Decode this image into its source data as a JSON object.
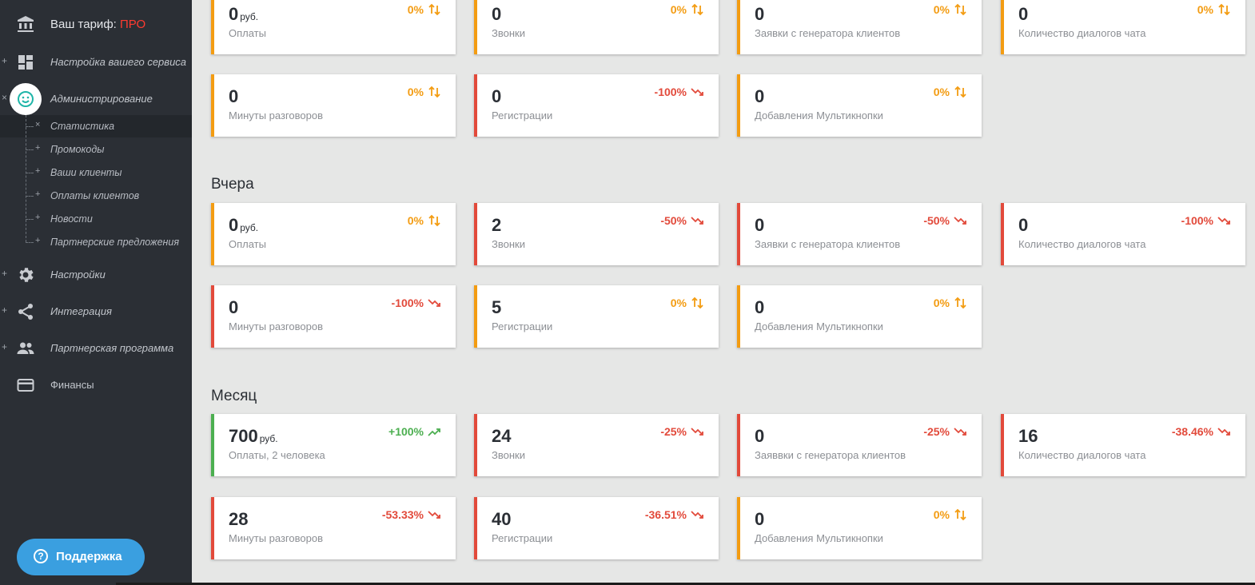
{
  "sidebar": {
    "tariff_label": "Ваш тариф:",
    "tariff_value": "ПРО",
    "items": [
      {
        "label": "Настройка вашего сервиса",
        "pm": "+",
        "icon": "dashboard-icon"
      },
      {
        "label": "Администрирование",
        "pm": "×",
        "icon": "smile-icon"
      },
      {
        "label": "Настройки",
        "pm": "+",
        "icon": "gear-icon"
      },
      {
        "label": "Интеграция",
        "pm": "+",
        "icon": "share-icon"
      },
      {
        "label": "Партнерская программа",
        "pm": "+",
        "icon": "people-icon"
      },
      {
        "label": "Финансы",
        "pm": "",
        "icon": "card-icon"
      }
    ],
    "subitems": [
      {
        "label": "Статистика",
        "mark": "×"
      },
      {
        "label": "Промокоды",
        "mark": "+"
      },
      {
        "label": "Ваши клиенты",
        "mark": "+"
      },
      {
        "label": "Оплаты клиентов",
        "mark": "+"
      },
      {
        "label": "Новости",
        "mark": "+"
      },
      {
        "label": "Партнерские предложения",
        "mark": "+"
      }
    ],
    "support_label": "Поддержка",
    "support_icon": "?"
  },
  "sections": [
    {
      "title": "",
      "cards": [
        {
          "value": "0",
          "unit": "руб.",
          "label": "Оплаты",
          "pct": "0%",
          "trend": "flat",
          "color": "orange"
        },
        {
          "value": "0",
          "unit": "",
          "label": "Звонки",
          "pct": "0%",
          "trend": "flat",
          "color": "orange"
        },
        {
          "value": "0",
          "unit": "",
          "label": "Заявки с генератора клиентов",
          "pct": "0%",
          "trend": "flat",
          "color": "orange"
        },
        {
          "value": "0",
          "unit": "",
          "label": "Количество диалогов чата",
          "pct": "0%",
          "trend": "flat",
          "color": "orange"
        },
        {
          "value": "0",
          "unit": "",
          "label": "Минуты разговоров",
          "pct": "0%",
          "trend": "flat",
          "color": "orange"
        },
        {
          "value": "0",
          "unit": "",
          "label": "Регистрации",
          "pct": "-100%",
          "trend": "down",
          "color": "red"
        },
        {
          "value": "0",
          "unit": "",
          "label": "Добавления Мультикнопки",
          "pct": "0%",
          "trend": "flat",
          "color": "orange"
        }
      ]
    },
    {
      "title": "Вчера",
      "cards": [
        {
          "value": "0",
          "unit": "руб.",
          "label": "Оплаты",
          "pct": "0%",
          "trend": "flat",
          "color": "orange"
        },
        {
          "value": "2",
          "unit": "",
          "label": "Звонки",
          "pct": "-50%",
          "trend": "down",
          "color": "red"
        },
        {
          "value": "0",
          "unit": "",
          "label": "Заявки с генератора клиентов",
          "pct": "-50%",
          "trend": "down",
          "color": "red"
        },
        {
          "value": "0",
          "unit": "",
          "label": "Количество диалогов чата",
          "pct": "-100%",
          "trend": "down",
          "color": "red"
        },
        {
          "value": "0",
          "unit": "",
          "label": "Минуты разговоров",
          "pct": "-100%",
          "trend": "down",
          "color": "red"
        },
        {
          "value": "5",
          "unit": "",
          "label": "Регистрации",
          "pct": "0%",
          "trend": "flat",
          "color": "orange"
        },
        {
          "value": "0",
          "unit": "",
          "label": "Добавления Мультикнопки",
          "pct": "0%",
          "trend": "flat",
          "color": "orange"
        }
      ]
    },
    {
      "title": "Месяц",
      "cards": [
        {
          "value": "700",
          "unit": "руб.",
          "label": "Оплаты, 2 человека",
          "pct": "+100%",
          "trend": "up",
          "color": "green"
        },
        {
          "value": "24",
          "unit": "",
          "label": "Звонки",
          "pct": "-25%",
          "trend": "down",
          "color": "red"
        },
        {
          "value": "0",
          "unit": "",
          "label": "Заяввки с генератора клиентов",
          "pct": "-25%",
          "trend": "down",
          "color": "red"
        },
        {
          "value": "16",
          "unit": "",
          "label": "Количество диалогов чата",
          "pct": "-38.46%",
          "trend": "down",
          "color": "red"
        },
        {
          "value": "28",
          "unit": "",
          "label": "Минуты разговоров",
          "pct": "-53.33%",
          "trend": "down",
          "color": "red"
        },
        {
          "value": "40",
          "unit": "",
          "label": "Регистрации",
          "pct": "-36.51%",
          "trend": "down",
          "color": "red"
        },
        {
          "value": "0",
          "unit": "",
          "label": "Добавления Мультикнопки",
          "pct": "0%",
          "trend": "flat",
          "color": "orange"
        }
      ]
    }
  ],
  "colors": {
    "orange": "#f39c12",
    "red": "#e24a3b",
    "green": "#4caf50",
    "sidebar_bg": "#2b2f35",
    "accent_pro": "#ff3b30"
  }
}
